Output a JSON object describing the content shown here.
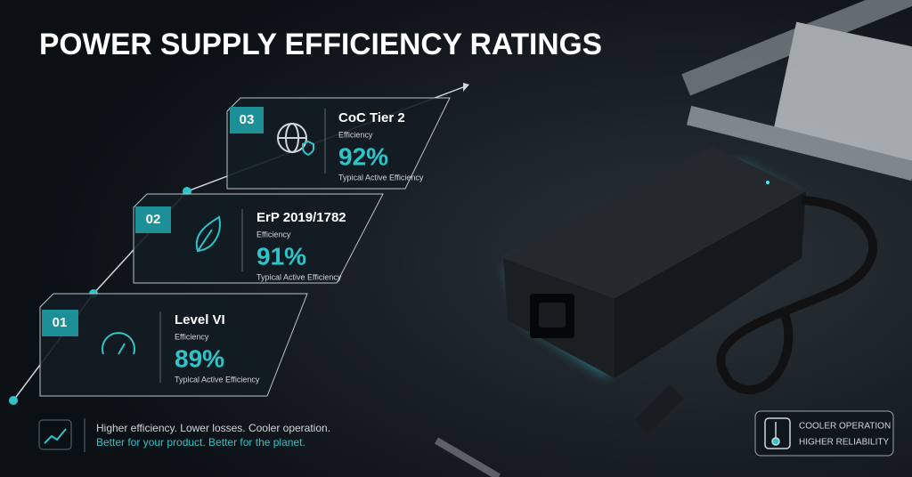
{
  "header": {
    "title": "POWER SUPPLY EFFICIENCY RATINGS"
  },
  "tiers": [
    {
      "number": "01",
      "name": "Level VI",
      "efficiency_label": "Efficiency",
      "efficiency": "89%",
      "note": "Typical Active Efficiency"
    },
    {
      "number": "02",
      "name": "ErP 2019/1782",
      "efficiency_label": "Efficiency",
      "efficiency": "91%",
      "note": "Typical Active Efficiency"
    },
    {
      "number": "03",
      "name": "CoC Tier 2",
      "efficiency_label": "Efficiency",
      "efficiency": "92%",
      "note": "Typical Active Efficiency"
    }
  ],
  "footer": {
    "line1": "Higher efficiency. Lower losses. Cooler operation.",
    "line2": "Better for your product. Better for the planet."
  },
  "badge": {
    "line1": "COOLER OPERATION",
    "line2": "HIGHER RELIABILITY"
  }
}
